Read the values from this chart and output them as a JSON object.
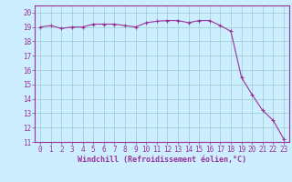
{
  "x": [
    0,
    1,
    2,
    3,
    4,
    5,
    6,
    7,
    8,
    9,
    10,
    11,
    12,
    13,
    14,
    15,
    16,
    17,
    18,
    19,
    20,
    21,
    22,
    23
  ],
  "y": [
    19.0,
    19.1,
    18.9,
    19.0,
    19.0,
    19.2,
    19.2,
    19.2,
    19.1,
    19.0,
    19.3,
    19.4,
    19.45,
    19.45,
    19.3,
    19.45,
    19.45,
    19.1,
    18.7,
    15.5,
    14.3,
    13.2,
    12.5,
    11.2
  ],
  "line_color": "#993399",
  "marker": "+",
  "markersize": 3,
  "linewidth": 0.8,
  "bg_color": "#cceeff",
  "grid_color": "#99cccc",
  "xlabel": "Windchill (Refroidissement éolien,°C)",
  "xlabel_color": "#993399",
  "tick_color": "#993399",
  "label_color": "#993399",
  "spine_color": "#993399",
  "xlim": [
    -0.5,
    23.5
  ],
  "ylim": [
    11,
    20.5
  ],
  "yticks": [
    11,
    12,
    13,
    14,
    15,
    16,
    17,
    18,
    19,
    20
  ],
  "xticks": [
    0,
    1,
    2,
    3,
    4,
    5,
    6,
    7,
    8,
    9,
    10,
    11,
    12,
    13,
    14,
    15,
    16,
    17,
    18,
    19,
    20,
    21,
    22,
    23
  ],
  "font_size": 5.5,
  "xlabel_size": 6.0
}
